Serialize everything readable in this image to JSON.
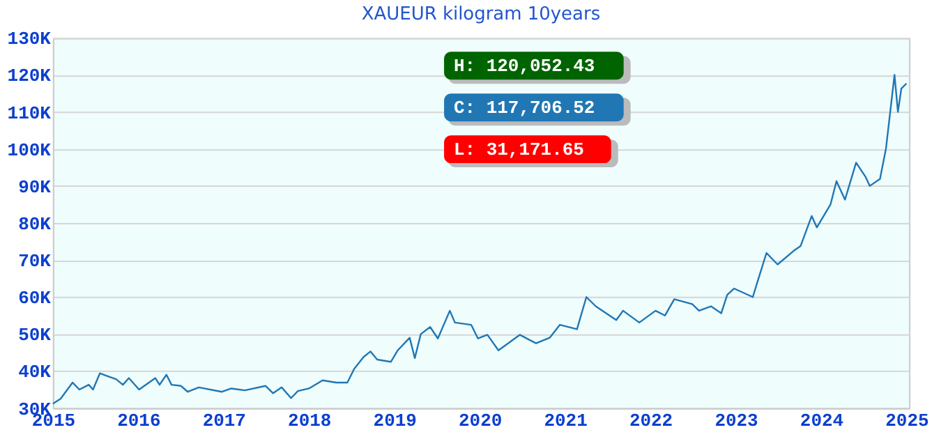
{
  "chart_data": {
    "type": "line",
    "title": "XAUEUR kilogram  10years",
    "x": [
      2015.0,
      2015.09,
      2015.23,
      2015.31,
      2015.42,
      2015.47,
      2015.55,
      2015.63,
      2015.74,
      2015.82,
      2015.89,
      2016.01,
      2016.2,
      2016.25,
      2016.33,
      2016.39,
      2016.5,
      2016.58,
      2016.71,
      2016.98,
      2017.09,
      2017.25,
      2017.49,
      2017.58,
      2017.68,
      2017.79,
      2017.87,
      2018.0,
      2018.16,
      2018.32,
      2018.45,
      2018.53,
      2018.64,
      2018.72,
      2018.8,
      2018.96,
      2019.04,
      2019.18,
      2019.24,
      2019.31,
      2019.42,
      2019.51,
      2019.65,
      2019.71,
      2019.9,
      2019.98,
      2020.09,
      2020.22,
      2020.47,
      2020.66,
      2020.82,
      2020.94,
      2021.14,
      2021.25,
      2021.36,
      2021.6,
      2021.68,
      2021.87,
      2022.06,
      2022.17,
      2022.28,
      2022.49,
      2022.57,
      2022.71,
      2022.83,
      2022.9,
      2022.98,
      2023.2,
      2023.25,
      2023.36,
      2023.49,
      2023.68,
      2023.76,
      2023.89,
      2023.95,
      2024.11,
      2024.18,
      2024.28,
      2024.41,
      2024.52,
      2024.57,
      2024.69,
      2024.76,
      2024.86,
      2024.9,
      2024.94,
      2025.0
    ],
    "series": [
      {
        "color": "#2077b4",
        "values": [
          31200,
          32500,
          36900,
          35000,
          36300,
          35000,
          39400,
          38700,
          37800,
          36300,
          38100,
          35000,
          38100,
          36300,
          39000,
          36300,
          36000,
          34400,
          35600,
          34400,
          35300,
          34800,
          36000,
          34000,
          35600,
          32700,
          34600,
          35300,
          37500,
          36900,
          36900,
          40600,
          43800,
          45300,
          43100,
          42500,
          45600,
          49000,
          43500,
          50000,
          51900,
          48800,
          56300,
          53100,
          52500,
          48800,
          49800,
          45600,
          49800,
          47500,
          49000,
          52500,
          51300,
          60000,
          57500,
          53800,
          56300,
          53100,
          56300,
          55000,
          59400,
          58100,
          56300,
          57500,
          55600,
          60600,
          62300,
          60000,
          63800,
          71900,
          68800,
          72500,
          73800,
          81900,
          78800,
          85000,
          91300,
          86300,
          96300,
          92500,
          90000,
          91900,
          100100,
          120000,
          110000,
          116300,
          117700
        ]
      }
    ],
    "xlim": [
      2015,
      2025.03
    ],
    "xticks": [
      2015,
      2016,
      2017,
      2018,
      2019,
      2020,
      2021,
      2022,
      2023,
      2024,
      2025
    ],
    "ylim": [
      30000,
      130000
    ],
    "yticks": [
      {
        "value": 30000,
        "label": "30K"
      },
      {
        "value": 40000,
        "label": "40K"
      },
      {
        "value": 50000,
        "label": "50K"
      },
      {
        "value": 60000,
        "label": "60K"
      },
      {
        "value": 70000,
        "label": "70K"
      },
      {
        "value": 80000,
        "label": "80K"
      },
      {
        "value": 90000,
        "label": "90K"
      },
      {
        "value": 100000,
        "label": "100K"
      },
      {
        "value": 110000,
        "label": "110K"
      },
      {
        "value": 120000,
        "label": "120K"
      },
      {
        "value": 130000,
        "label": "130K"
      }
    ],
    "grid": "y",
    "marker": "none",
    "line_style": "solid",
    "annotations": [
      "H: 120,052.43",
      "C: 117,706.52",
      "L: 31,171.65"
    ]
  }
}
